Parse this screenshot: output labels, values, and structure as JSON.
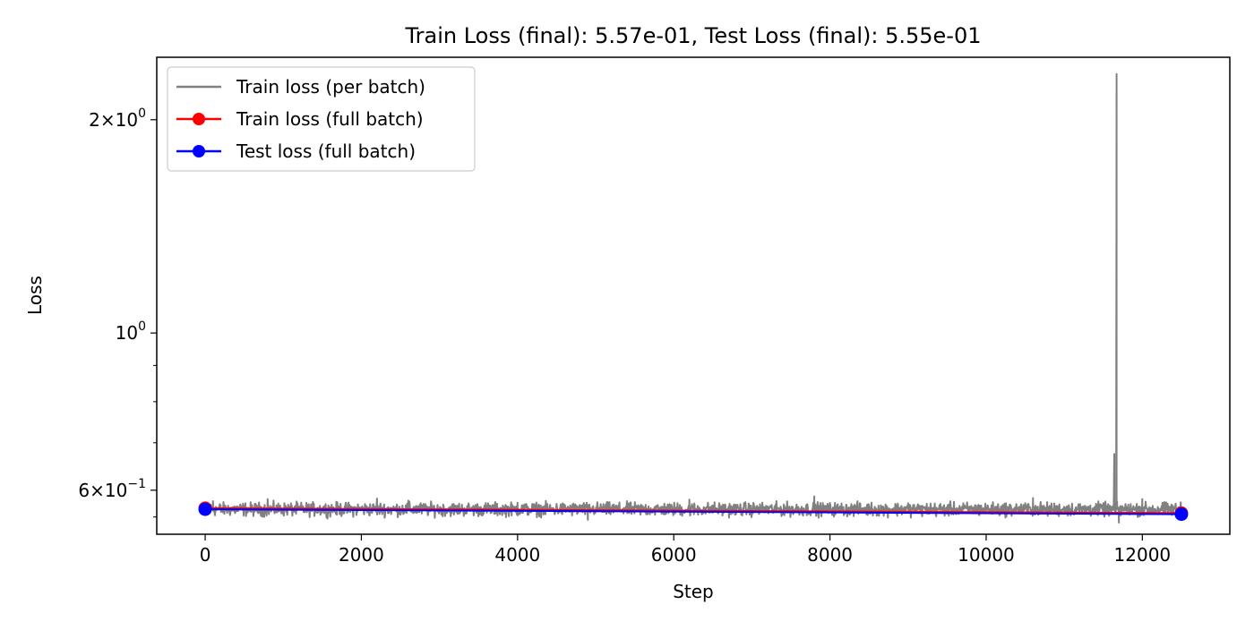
{
  "chart_data": {
    "type": "line",
    "title": "Train Loss (final): 5.57e-01, Test Loss (final): 5.55e-01",
    "xlabel": "Step",
    "ylabel": "Loss",
    "yscale": "log",
    "xlim": [
      -620,
      13120
    ],
    "ylim": [
      0.52,
      2.45
    ],
    "x_ticks": [
      0,
      2000,
      4000,
      6000,
      8000,
      10000,
      12000
    ],
    "x_tick_labels": [
      "0",
      "2000",
      "4000",
      "6000",
      "8000",
      "10000",
      "12000"
    ],
    "y_major_ticks": [
      0.6,
      1.0,
      2.0
    ],
    "y_major_tick_labels": [
      {
        "base": "6",
        "mult": "×",
        "mantissa": "10",
        "exp": "−1"
      },
      {
        "base": "",
        "mult": "",
        "mantissa": "10",
        "exp": "0"
      },
      {
        "base": "2",
        "mult": "×",
        "mantissa": "10",
        "exp": "0"
      }
    ],
    "y_minor_ticks": [
      0.55,
      0.7,
      0.8,
      0.9
    ],
    "grid": false,
    "legend_position": "top-left",
    "series": [
      {
        "name": "Train loss (per batch)",
        "color": "#808080",
        "style": "line",
        "noise_band": [
          0.546,
          0.582
        ],
        "x": [
          0,
          100,
          800,
          2200,
          2600,
          4000,
          4900,
          6200,
          7800,
          9000,
          10600,
          11600,
          11640,
          11660,
          11670,
          11680,
          11700,
          12000,
          12500
        ],
        "y": [
          0.568,
          0.579,
          0.583,
          0.584,
          0.58,
          0.576,
          0.545,
          0.582,
          0.588,
          0.575,
          0.585,
          0.566,
          0.675,
          0.56,
          2.32,
          0.565,
          0.54,
          0.583,
          0.566
        ]
      },
      {
        "name": "Train loss (full batch)",
        "color": "#ff0000",
        "style": "line-marker",
        "x": [
          0,
          12500
        ],
        "y": [
          0.566,
          0.557
        ]
      },
      {
        "name": "Test loss (full batch)",
        "color": "#0000ff",
        "style": "line-marker",
        "x": [
          0,
          12500
        ],
        "y": [
          0.564,
          0.555
        ]
      }
    ]
  }
}
